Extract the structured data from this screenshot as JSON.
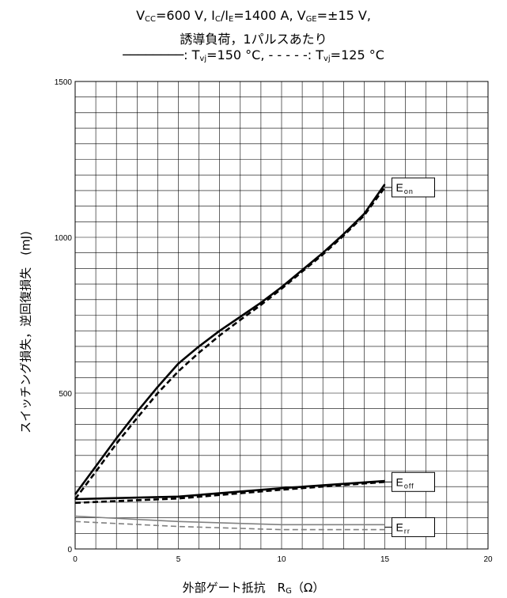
{
  "title": {
    "line1": {
      "vcc_prefix": "V",
      "vcc_sub": "CC",
      "vcc_value": "=600  V,  ",
      "ic_prefix": "I",
      "ic_sub": "C",
      "ic_mid": "/I",
      "ie_sub": "E",
      "ic_value": "=1400  A,  ",
      "vge_prefix": "V",
      "vge_sub": "GE",
      "vge_value": "=±15  V,"
    },
    "line2": "誘導負荷，1パルスあたり",
    "line3": {
      "solid_legend": "────────: T",
      "solid_sub": "vj",
      "solid_value": "=150 °C, ",
      "dashed_legend": "- - - - -: T",
      "dashed_sub": "vj",
      "dashed_value": "=125 °C"
    }
  },
  "chart_data": {
    "type": "line",
    "xlabel": "外部ゲート抵抗　R",
    "xlabel_sub": "G",
    "xlabel_unit": "（Ω）",
    "ylabel": "スイッチング損失，逆回復損失　(mJ)",
    "xlim": [
      0,
      20
    ],
    "ylim": [
      0,
      1500
    ],
    "x_ticks": [
      "0",
      "5",
      "10",
      "15",
      "20"
    ],
    "y_ticks": [
      "0",
      "500",
      "1000",
      "1500"
    ],
    "minor_x_step": 1,
    "minor_y_step": 50,
    "grid": true,
    "colors": {
      "main": "#000000",
      "err": "#808080",
      "grid": "#000000"
    },
    "series": [
      {
        "name": "Eon",
        "label_base": "E",
        "label_sub": "on",
        "temperature": "150 °C",
        "style": "solid",
        "color": "#000000",
        "x": [
          0,
          1,
          2,
          3,
          4,
          5,
          6,
          7,
          8,
          9,
          10,
          11,
          12,
          13,
          14,
          15
        ],
        "values": [
          175,
          265,
          355,
          440,
          520,
          595,
          650,
          700,
          745,
          790,
          840,
          895,
          950,
          1010,
          1075,
          1170
        ]
      },
      {
        "name": "Eon",
        "label_base": "E",
        "label_sub": "on",
        "temperature": "125 °C",
        "style": "dashed",
        "color": "#000000",
        "x": [
          0,
          1,
          2,
          3,
          4,
          5,
          6,
          7,
          8,
          9,
          10,
          11,
          12,
          13,
          14,
          15
        ],
        "values": [
          160,
          248,
          338,
          420,
          500,
          570,
          630,
          685,
          735,
          783,
          835,
          890,
          945,
          1005,
          1070,
          1160
        ]
      },
      {
        "name": "Eoff",
        "label_base": "E",
        "label_sub": "off",
        "temperature": "150 °C",
        "style": "solid",
        "color": "#000000",
        "x": [
          0,
          5,
          10,
          15
        ],
        "values": [
          160,
          168,
          195,
          218
        ]
      },
      {
        "name": "Eoff",
        "label_base": "E",
        "label_sub": "off",
        "temperature": "125 °C",
        "style": "dashed",
        "color": "#000000",
        "x": [
          0,
          5,
          10,
          15
        ],
        "values": [
          148,
          162,
          190,
          215
        ]
      },
      {
        "name": "Err",
        "label_base": "E",
        "label_sub": "rr",
        "temperature": "150 °C",
        "style": "solid",
        "color": "#808080",
        "x": [
          0,
          5,
          10,
          15
        ],
        "values": [
          105,
          88,
          78,
          78
        ]
      },
      {
        "name": "Err",
        "label_base": "E",
        "label_sub": "rr",
        "temperature": "125 °C",
        "style": "dashed",
        "color": "#808080",
        "x": [
          0,
          5,
          10,
          15
        ],
        "values": [
          88,
          72,
          62,
          62
        ]
      }
    ],
    "annotations": [
      {
        "series": "Eon",
        "at_x": 15,
        "at_y": 1160
      },
      {
        "series": "Eoff",
        "at_x": 15,
        "at_y": 215
      },
      {
        "series": "Err",
        "at_x": 15,
        "at_y": 70
      }
    ]
  }
}
